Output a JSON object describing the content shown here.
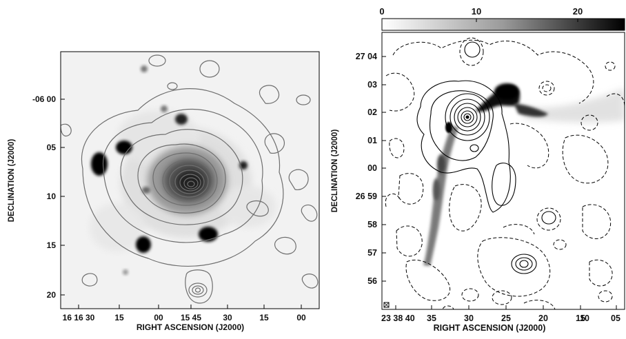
{
  "left_panel": {
    "xlabel": "RIGHT ASCENSION (J2000)",
    "ylabel": "DECLINATION (J2000)",
    "x_ticks": [
      "16 16 30",
      "15",
      "00",
      "15 45",
      "30",
      "15",
      "00"
    ],
    "y_ticks": [
      "-06 00",
      "05",
      "10",
      "15",
      "20"
    ]
  },
  "right_panel": {
    "xlabel": "RIGHT ASCENSION (J2000)",
    "ylabel": "DECLINATION (J2000)",
    "x_ticks": [
      "23 38 40",
      "35",
      "30",
      "25",
      "20",
      "15",
      "10",
      "05"
    ],
    "y_ticks": [
      "27 04",
      "03",
      "02",
      "01",
      "00",
      "26 59",
      "58",
      "57",
      "56"
    ],
    "colorbar_ticks": [
      "0",
      "10",
      "20"
    ]
  },
  "colors": {
    "contour_left": "#6e6e6e",
    "contour_right": "#000000",
    "frame": "#000000"
  }
}
